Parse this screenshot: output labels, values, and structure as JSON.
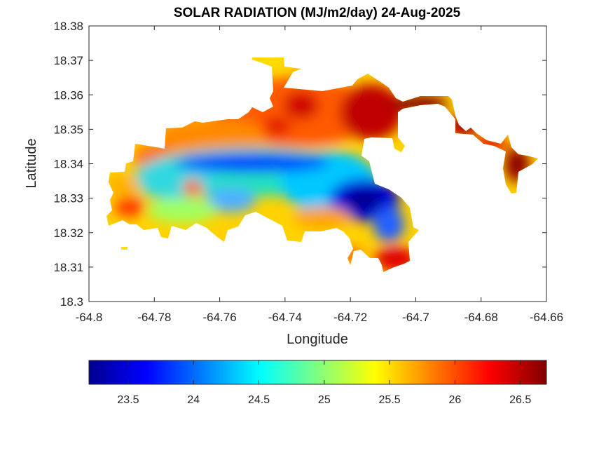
{
  "chart_data": {
    "type": "heatmap",
    "title": "SOLAR RADIATION (MJ/m2/day) 24-Aug-2025",
    "xlabel": "Longitude",
    "ylabel": "Latitude",
    "xlim": [
      -64.8,
      -64.66
    ],
    "ylim": [
      18.3,
      18.38
    ],
    "x_ticks": [
      "-64.8",
      "-64.78",
      "-64.76",
      "-64.74",
      "-64.72",
      "-64.7",
      "-64.68",
      "-64.66"
    ],
    "y_ticks": [
      "18.3",
      "18.31",
      "18.32",
      "18.33",
      "18.34",
      "18.35",
      "18.36",
      "18.37",
      "18.38"
    ],
    "colorbar": {
      "colormap": "jet",
      "range": [
        23.2,
        26.7
      ],
      "ticks": [
        "23.5",
        "24",
        "24.5",
        "25",
        "25.5",
        "26",
        "26.5"
      ]
    },
    "colors": {
      "lowest": "#00008f",
      "low": "#0000ff",
      "mid_low": "#00ffff",
      "mid": "#ffff00",
      "high": "#ff0000",
      "highest": "#800000"
    },
    "regions": [
      {
        "name": "west-yellow",
        "value": 25.5
      },
      {
        "name": "west-red-spot",
        "value": 26.2
      },
      {
        "name": "central-cyan-band",
        "value": 24.6
      },
      {
        "name": "north-orange",
        "value": 25.9
      },
      {
        "name": "northeast-dark-red",
        "value": 26.6
      },
      {
        "name": "central-blue-band",
        "value": 24.0
      },
      {
        "name": "southeast-dark-blue",
        "value": 23.4
      },
      {
        "name": "south-red",
        "value": 26.2
      },
      {
        "name": "east-dark-red",
        "value": 26.5
      }
    ]
  }
}
